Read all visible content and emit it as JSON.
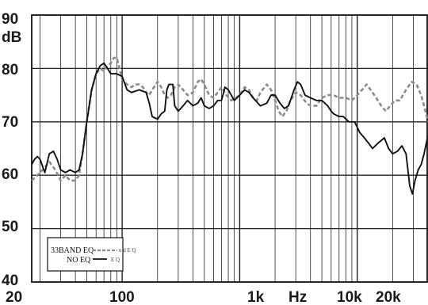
{
  "chart_data": {
    "type": "line",
    "xscale": "log",
    "xlim": [
      17,
      40000
    ],
    "ylim": [
      40,
      90
    ],
    "yunit": "dB",
    "xunit": "Hz",
    "grid": true,
    "legend_placement": "bottom-left",
    "x_tick_labels": [
      {
        "value": 20,
        "label": "20"
      },
      {
        "value": 100,
        "label": "100"
      },
      {
        "value": 1000,
        "label": "1k"
      },
      {
        "value": 10000,
        "label": "10k"
      },
      {
        "value": 20000,
        "label": "20k"
      }
    ],
    "y_tick_labels": [
      {
        "value": 90,
        "label": "90"
      },
      {
        "value": 80,
        "label": "80"
      },
      {
        "value": 70,
        "label": "70"
      },
      {
        "value": 60,
        "label": "60"
      },
      {
        "value": 50,
        "label": "50"
      },
      {
        "value": 40,
        "label": "40"
      }
    ],
    "legend": {
      "eq_label": "33BAND EQ",
      "eq_trail": "n d E Q",
      "no_eq_label": "NO EQ",
      "no_eq_trail": "E Q"
    },
    "series": [
      {
        "name": "33BAND EQ",
        "color": "#8c8c8c",
        "dash": "5,3",
        "points": [
          [
            17,
            59
          ],
          [
            19,
            60
          ],
          [
            21,
            61
          ],
          [
            24,
            62.5
          ],
          [
            27,
            61
          ],
          [
            30,
            59
          ],
          [
            33,
            60
          ],
          [
            36,
            59
          ],
          [
            40,
            59
          ],
          [
            43,
            60
          ],
          [
            46,
            64
          ],
          [
            50,
            70
          ],
          [
            55,
            76
          ],
          [
            60,
            79
          ],
          [
            65,
            80
          ],
          [
            70,
            79.5
          ],
          [
            75,
            80.5
          ],
          [
            80,
            81
          ],
          [
            85,
            82
          ],
          [
            90,
            82
          ],
          [
            95,
            80
          ],
          [
            100,
            78
          ],
          [
            110,
            77
          ],
          [
            120,
            76.5
          ],
          [
            130,
            77
          ],
          [
            140,
            77
          ],
          [
            150,
            76.5
          ],
          [
            160,
            75.5
          ],
          [
            170,
            75
          ],
          [
            180,
            76
          ],
          [
            200,
            77.5
          ],
          [
            215,
            76.5
          ],
          [
            230,
            75
          ],
          [
            245,
            74.5
          ],
          [
            260,
            75
          ],
          [
            280,
            76.5
          ],
          [
            300,
            77
          ],
          [
            330,
            76
          ],
          [
            360,
            75
          ],
          [
            400,
            75.5
          ],
          [
            440,
            77.5
          ],
          [
            470,
            78
          ],
          [
            500,
            77
          ],
          [
            550,
            75
          ],
          [
            600,
            74.5
          ],
          [
            650,
            75.5
          ],
          [
            700,
            76.5
          ],
          [
            770,
            75
          ],
          [
            850,
            74
          ],
          [
            930,
            74.5
          ],
          [
            1000,
            75
          ],
          [
            1100,
            76.5
          ],
          [
            1200,
            76
          ],
          [
            1300,
            74.5
          ],
          [
            1400,
            74
          ],
          [
            1500,
            75.5
          ],
          [
            1700,
            77
          ],
          [
            1850,
            76
          ],
          [
            2000,
            74
          ],
          [
            2150,
            72
          ],
          [
            2300,
            71
          ],
          [
            2500,
            72
          ],
          [
            2700,
            74
          ],
          [
            3000,
            75.5
          ],
          [
            3300,
            75
          ],
          [
            3700,
            73.5
          ],
          [
            4000,
            73
          ],
          [
            4500,
            73
          ],
          [
            5000,
            74.5
          ],
          [
            5600,
            75
          ],
          [
            6300,
            75
          ],
          [
            7000,
            74.5
          ],
          [
            8000,
            74.5
          ],
          [
            9000,
            74
          ],
          [
            10000,
            75
          ],
          [
            11000,
            76
          ],
          [
            12000,
            77
          ],
          [
            13000,
            76
          ],
          [
            14500,
            74.5
          ],
          [
            16000,
            73
          ],
          [
            17500,
            72
          ],
          [
            19000,
            73
          ],
          [
            21000,
            74
          ],
          [
            23000,
            74
          ],
          [
            26000,
            76
          ],
          [
            29000,
            77.5
          ],
          [
            32000,
            77
          ],
          [
            35000,
            75
          ],
          [
            37000,
            73
          ],
          [
            40000,
            70
          ]
        ]
      },
      {
        "name": "NO EQ",
        "color": "#111111",
        "dash": "",
        "points": [
          [
            17,
            62
          ],
          [
            18,
            63
          ],
          [
            19,
            63.5
          ],
          [
            20,
            63
          ],
          [
            22,
            60.5
          ],
          [
            24,
            64
          ],
          [
            26,
            64.5
          ],
          [
            28,
            63
          ],
          [
            30,
            61
          ],
          [
            33,
            60.5
          ],
          [
            36,
            61
          ],
          [
            40,
            60.5
          ],
          [
            43,
            61
          ],
          [
            46,
            64
          ],
          [
            50,
            70
          ],
          [
            55,
            76
          ],
          [
            60,
            79
          ],
          [
            65,
            80.5
          ],
          [
            70,
            81
          ],
          [
            75,
            80
          ],
          [
            80,
            79
          ],
          [
            90,
            79
          ],
          [
            100,
            78.5
          ],
          [
            110,
            76
          ],
          [
            120,
            75.5
          ],
          [
            140,
            76
          ],
          [
            160,
            75.5
          ],
          [
            170,
            73.5
          ],
          [
            180,
            71
          ],
          [
            200,
            70.5
          ],
          [
            215,
            71.5
          ],
          [
            230,
            72
          ],
          [
            240,
            76
          ],
          [
            250,
            77
          ],
          [
            270,
            77
          ],
          [
            280,
            73
          ],
          [
            300,
            72
          ],
          [
            330,
            73
          ],
          [
            360,
            74
          ],
          [
            400,
            73
          ],
          [
            440,
            73.5
          ],
          [
            470,
            74.5
          ],
          [
            500,
            73
          ],
          [
            550,
            72.5
          ],
          [
            600,
            73
          ],
          [
            650,
            74
          ],
          [
            700,
            74
          ],
          [
            750,
            76.5
          ],
          [
            800,
            76
          ],
          [
            900,
            74
          ],
          [
            1000,
            75
          ],
          [
            1100,
            76
          ],
          [
            1200,
            75.5
          ],
          [
            1300,
            74.5
          ],
          [
            1500,
            73
          ],
          [
            1700,
            73.5
          ],
          [
            1850,
            75
          ],
          [
            2000,
            75
          ],
          [
            2200,
            73.5
          ],
          [
            2400,
            72.5
          ],
          [
            2600,
            73
          ],
          [
            2900,
            76
          ],
          [
            3100,
            77.5
          ],
          [
            3300,
            77
          ],
          [
            3600,
            75
          ],
          [
            4000,
            74.5
          ],
          [
            4500,
            74
          ],
          [
            5000,
            74
          ],
          [
            5600,
            73
          ],
          [
            6000,
            72
          ],
          [
            6300,
            71.5
          ],
          [
            7000,
            71
          ],
          [
            7600,
            71
          ],
          [
            8500,
            70
          ],
          [
            9500,
            70
          ],
          [
            10500,
            68
          ],
          [
            11500,
            67
          ],
          [
            12500,
            66
          ],
          [
            13500,
            65
          ],
          [
            15000,
            66
          ],
          [
            16000,
            66.5
          ],
          [
            17000,
            67
          ],
          [
            18500,
            65
          ],
          [
            20000,
            64
          ],
          [
            22000,
            64.5
          ],
          [
            24000,
            65.5
          ],
          [
            26000,
            64
          ],
          [
            28000,
            58
          ],
          [
            29500,
            56.5
          ],
          [
            31000,
            59
          ],
          [
            33000,
            61
          ],
          [
            35000,
            62
          ],
          [
            37000,
            64
          ],
          [
            40000,
            67.5
          ]
        ]
      }
    ]
  }
}
